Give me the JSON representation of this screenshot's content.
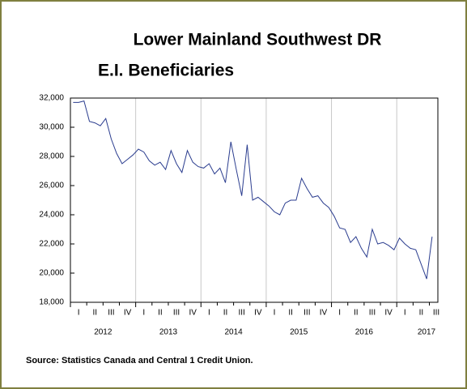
{
  "chart_data": {
    "type": "line",
    "title": [
      "Lower Mainland Southwest DR",
      "E.I. Beneficiaries"
    ],
    "source": "Source: Statistics Canada and Central 1 Credit Union.",
    "x_quarter_labels": [
      "I",
      "II",
      "III",
      "IV",
      "I",
      "II",
      "III",
      "IV",
      "I",
      "II",
      "III",
      "IV",
      "I",
      "II",
      "III",
      "IV",
      "I",
      "II",
      "III",
      "IV",
      "I",
      "II",
      "III"
    ],
    "x_year_labels": [
      "2012",
      "2013",
      "2014",
      "2015",
      "2016",
      "2017"
    ],
    "color": "#2b3d8f",
    "values": [
      31700,
      31700,
      31800,
      30400,
      30300,
      30100,
      30600,
      29200,
      28200,
      27500,
      27800,
      28100,
      28500,
      28300,
      27700,
      27400,
      27600,
      27100,
      28400,
      27500,
      26900,
      28400,
      27600,
      27300,
      27200,
      27500,
      26800,
      27200,
      26200,
      29000,
      27100,
      25300,
      28800,
      25000,
      25200,
      24900,
      24600,
      24200,
      24000,
      24800,
      25000,
      25000,
      26500,
      25800,
      25200,
      25300,
      24800,
      24500,
      23900,
      23100,
      23000,
      22100,
      22500,
      21700,
      21100,
      23000,
      22000,
      22100,
      21900,
      21600,
      22400,
      22000,
      21700,
      21600,
      20600,
      19600,
      22500
    ],
    "ylim": [
      18000,
      32000
    ],
    "yticks": [
      {
        "value": 18000,
        "label": "18,000"
      },
      {
        "value": 20000,
        "label": "20,000"
      },
      {
        "value": 22000,
        "label": "22,000"
      },
      {
        "value": 24000,
        "label": "24,000"
      },
      {
        "value": 26000,
        "label": "26,000"
      },
      {
        "value": 28000,
        "label": "28,000"
      },
      {
        "value": 30000,
        "label": "30,000"
      },
      {
        "value": 32000,
        "label": "32,000"
      }
    ],
    "grid": true
  }
}
